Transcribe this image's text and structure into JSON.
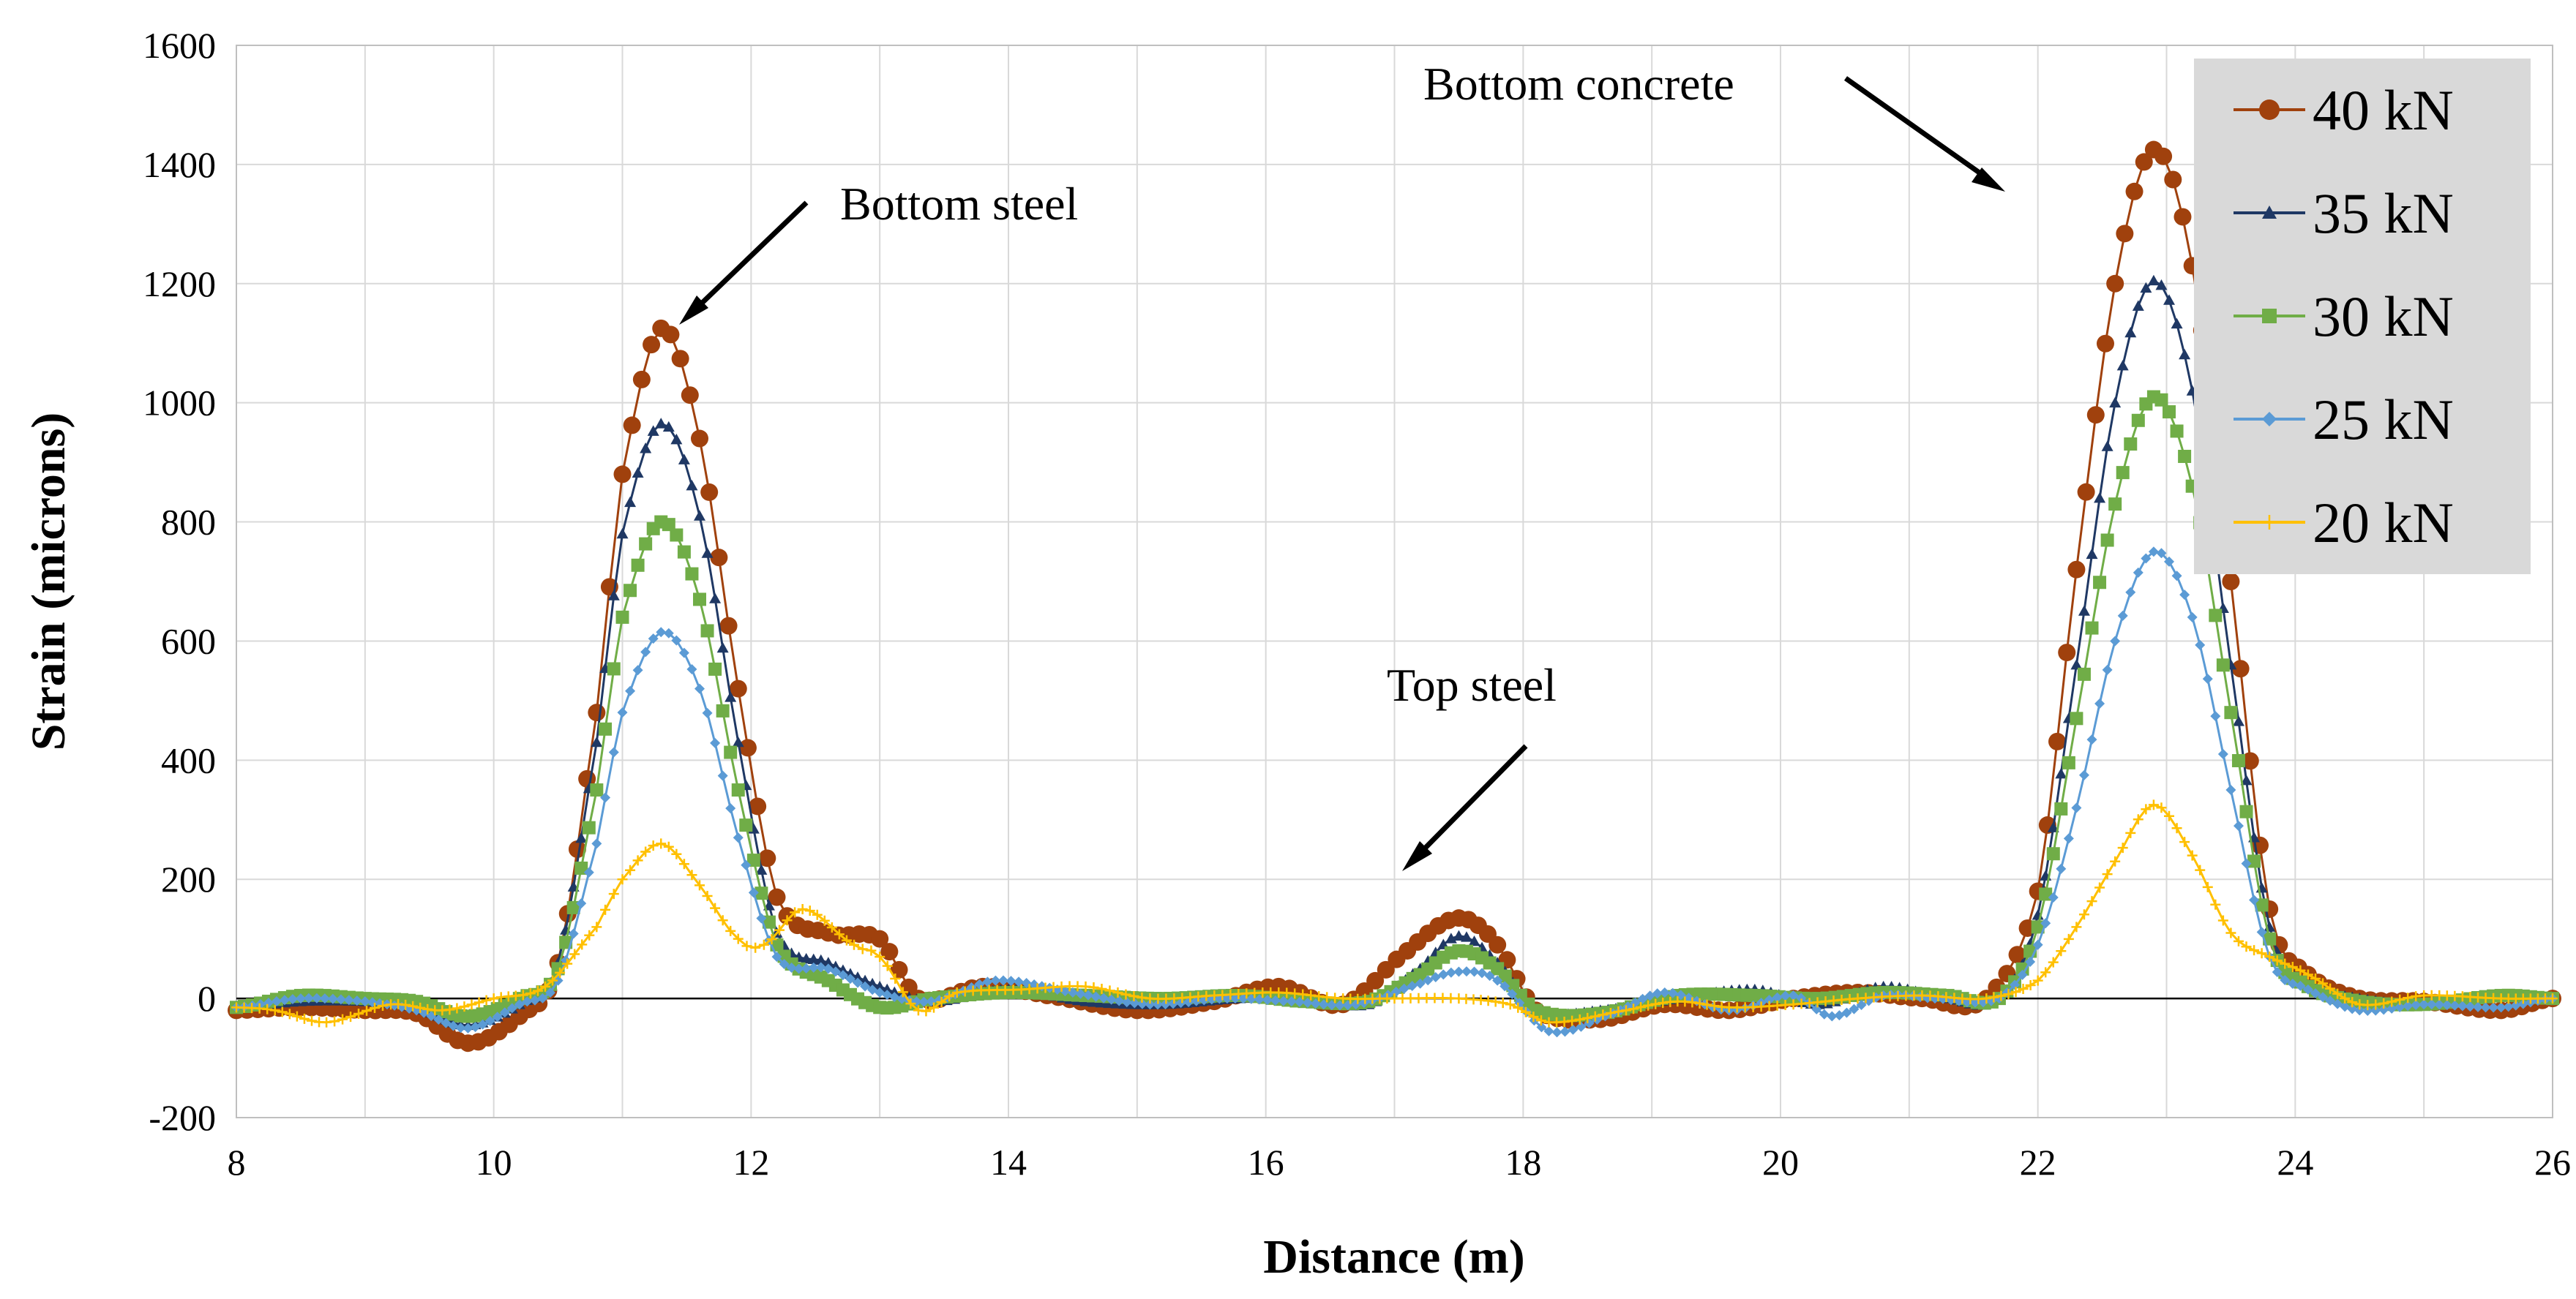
{
  "chart_data": {
    "type": "line",
    "title": "",
    "xlabel": "Distance (m)",
    "ylabel": "Strain (microns)",
    "xlim": [
      8,
      26
    ],
    "ylim": [
      -200,
      1600
    ],
    "xticks": [
      8,
      10,
      12,
      14,
      16,
      18,
      20,
      22,
      24,
      26
    ],
    "yticks": [
      -200,
      0,
      200,
      400,
      600,
      800,
      1000,
      1200,
      1400,
      1600
    ],
    "grid": true,
    "legend_position": "top-right",
    "annotations": [
      {
        "text": "Bottom steel",
        "x": 11.5,
        "y": 1120
      },
      {
        "text": "Top steel",
        "x": 17.6,
        "y": 215
      },
      {
        "text": "Bottom concrete",
        "x": 22.5,
        "y": 1360
      }
    ],
    "series": [
      {
        "name": "40 kN",
        "color": "#a0410d",
        "marker": "circle",
        "points": [
          [
            8,
            -20
          ],
          [
            8.5,
            -15
          ],
          [
            9,
            -20
          ],
          [
            9.4,
            -25
          ],
          [
            9.8,
            -75
          ],
          [
            10.2,
            -30
          ],
          [
            10.5,
            60
          ],
          [
            10.8,
            480
          ],
          [
            11.0,
            880
          ],
          [
            11.3,
            1125
          ],
          [
            11.6,
            940
          ],
          [
            11.9,
            520
          ],
          [
            12.2,
            170
          ],
          [
            12.6,
            110
          ],
          [
            13.0,
            100
          ],
          [
            13.3,
            0
          ],
          [
            13.8,
            20
          ],
          [
            14.3,
            5
          ],
          [
            15,
            -20
          ],
          [
            15.6,
            -5
          ],
          [
            16.1,
            20
          ],
          [
            16.6,
            -10
          ],
          [
            17.1,
            80
          ],
          [
            17.5,
            135
          ],
          [
            17.8,
            90
          ],
          [
            18.1,
            -20
          ],
          [
            18.6,
            -35
          ],
          [
            19.1,
            -10
          ],
          [
            19.6,
            -20
          ],
          [
            20.1,
            0
          ],
          [
            20.6,
            10
          ],
          [
            21.1,
            0
          ],
          [
            21.6,
            0
          ],
          [
            22.0,
            180
          ],
          [
            22.3,
            720
          ],
          [
            22.6,
            1200
          ],
          [
            22.9,
            1425
          ],
          [
            23.2,
            1230
          ],
          [
            23.5,
            700
          ],
          [
            23.8,
            150
          ],
          [
            24.1,
            40
          ],
          [
            24.5,
            0
          ],
          [
            25.0,
            -5
          ],
          [
            25.6,
            -20
          ],
          [
            26,
            0
          ]
        ]
      },
      {
        "name": "35 kN",
        "color": "#1f3864",
        "marker": "triangle",
        "points": [
          [
            8,
            -15
          ],
          [
            8.5,
            -5
          ],
          [
            9,
            -5
          ],
          [
            9.4,
            -15
          ],
          [
            9.8,
            -45
          ],
          [
            10.2,
            -10
          ],
          [
            10.5,
            60
          ],
          [
            10.8,
            430
          ],
          [
            11.0,
            780
          ],
          [
            11.3,
            965
          ],
          [
            11.6,
            810
          ],
          [
            11.9,
            430
          ],
          [
            12.2,
            110
          ],
          [
            12.6,
            60
          ],
          [
            13.0,
            20
          ],
          [
            13.4,
            -5
          ],
          [
            14.0,
            15
          ],
          [
            14.6,
            -5
          ],
          [
            15.2,
            -10
          ],
          [
            15.8,
            0
          ],
          [
            16.3,
            0
          ],
          [
            16.8,
            -10
          ],
          [
            17.2,
            50
          ],
          [
            17.5,
            105
          ],
          [
            17.8,
            60
          ],
          [
            18.1,
            -20
          ],
          [
            18.6,
            -20
          ],
          [
            19.2,
            0
          ],
          [
            19.8,
            15
          ],
          [
            20.3,
            -10
          ],
          [
            20.8,
            20
          ],
          [
            21.3,
            0
          ],
          [
            21.7,
            0
          ],
          [
            22.0,
            140
          ],
          [
            22.3,
            560
          ],
          [
            22.6,
            1000
          ],
          [
            22.9,
            1205
          ],
          [
            23.2,
            1020
          ],
          [
            23.5,
            560
          ],
          [
            23.8,
            120
          ],
          [
            24.1,
            25
          ],
          [
            24.5,
            0
          ],
          [
            25.0,
            -10
          ],
          [
            25.6,
            5
          ],
          [
            26,
            0
          ]
        ]
      },
      {
        "name": "30 kN",
        "color": "#70ad47",
        "marker": "square",
        "points": [
          [
            8,
            -15
          ],
          [
            8.5,
            5
          ],
          [
            9,
            0
          ],
          [
            9.4,
            -5
          ],
          [
            9.8,
            -30
          ],
          [
            10.2,
            0
          ],
          [
            10.5,
            50
          ],
          [
            10.8,
            350
          ],
          [
            11.0,
            640
          ],
          [
            11.3,
            800
          ],
          [
            11.6,
            670
          ],
          [
            11.9,
            350
          ],
          [
            12.2,
            90
          ],
          [
            12.6,
            30
          ],
          [
            13.0,
            -15
          ],
          [
            13.4,
            0
          ],
          [
            14.0,
            10
          ],
          [
            14.6,
            5
          ],
          [
            15.2,
            0
          ],
          [
            15.8,
            5
          ],
          [
            16.3,
            -5
          ],
          [
            16.8,
            -5
          ],
          [
            17.2,
            40
          ],
          [
            17.5,
            80
          ],
          [
            17.8,
            50
          ],
          [
            18.1,
            -20
          ],
          [
            18.6,
            -25
          ],
          [
            19.2,
            5
          ],
          [
            19.8,
            5
          ],
          [
            20.3,
            0
          ],
          [
            20.8,
            10
          ],
          [
            21.3,
            5
          ],
          [
            21.7,
            0
          ],
          [
            22.0,
            120
          ],
          [
            22.3,
            470
          ],
          [
            22.6,
            830
          ],
          [
            22.9,
            1010
          ],
          [
            23.2,
            860
          ],
          [
            23.5,
            480
          ],
          [
            23.8,
            100
          ],
          [
            24.1,
            20
          ],
          [
            24.5,
            -5
          ],
          [
            25.0,
            -10
          ],
          [
            25.6,
            5
          ],
          [
            26,
            0
          ]
        ]
      },
      {
        "name": "25 kN",
        "color": "#5b9bd5",
        "marker": "diamond",
        "points": [
          [
            8,
            -15
          ],
          [
            8.5,
            0
          ],
          [
            9,
            -5
          ],
          [
            9.4,
            -20
          ],
          [
            9.8,
            -50
          ],
          [
            10.2,
            -10
          ],
          [
            10.5,
            30
          ],
          [
            10.8,
            260
          ],
          [
            11.0,
            480
          ],
          [
            11.3,
            615
          ],
          [
            11.6,
            520
          ],
          [
            11.9,
            270
          ],
          [
            12.2,
            70
          ],
          [
            12.6,
            50
          ],
          [
            13.0,
            10
          ],
          [
            13.4,
            -5
          ],
          [
            13.9,
            30
          ],
          [
            14.5,
            10
          ],
          [
            15.1,
            -10
          ],
          [
            15.7,
            0
          ],
          [
            16.2,
            -5
          ],
          [
            16.7,
            -10
          ],
          [
            17.2,
            25
          ],
          [
            17.5,
            45
          ],
          [
            17.8,
            30
          ],
          [
            18.2,
            -55
          ],
          [
            18.7,
            -25
          ],
          [
            19.1,
            10
          ],
          [
            19.6,
            -20
          ],
          [
            20.1,
            5
          ],
          [
            20.4,
            -30
          ],
          [
            20.8,
            5
          ],
          [
            21.2,
            0
          ],
          [
            21.7,
            0
          ],
          [
            22.0,
            90
          ],
          [
            22.3,
            320
          ],
          [
            22.6,
            600
          ],
          [
            22.9,
            750
          ],
          [
            23.2,
            640
          ],
          [
            23.5,
            350
          ],
          [
            23.8,
            70
          ],
          [
            24.1,
            15
          ],
          [
            24.5,
            -20
          ],
          [
            25.0,
            -10
          ],
          [
            25.6,
            -15
          ],
          [
            26,
            0
          ]
        ]
      },
      {
        "name": "20 kN",
        "color": "#ffc000",
        "marker": "plus",
        "points": [
          [
            8,
            -15
          ],
          [
            8.3,
            -20
          ],
          [
            8.7,
            -40
          ],
          [
            9.2,
            -10
          ],
          [
            9.6,
            -20
          ],
          [
            10.0,
            0
          ],
          [
            10.4,
            20
          ],
          [
            10.8,
            120
          ],
          [
            11.0,
            200
          ],
          [
            11.3,
            260
          ],
          [
            11.6,
            190
          ],
          [
            11.9,
            100
          ],
          [
            12.1,
            90
          ],
          [
            12.4,
            150
          ],
          [
            12.8,
            90
          ],
          [
            13.0,
            70
          ],
          [
            13.3,
            -20
          ],
          [
            13.6,
            10
          ],
          [
            14.1,
            15
          ],
          [
            14.6,
            20
          ],
          [
            15.1,
            0
          ],
          [
            15.6,
            5
          ],
          [
            16.1,
            10
          ],
          [
            16.6,
            0
          ],
          [
            17.0,
            0
          ],
          [
            17.5,
            0
          ],
          [
            17.9,
            -10
          ],
          [
            18.2,
            -40
          ],
          [
            18.8,
            -20
          ],
          [
            19.2,
            -5
          ],
          [
            19.6,
            -15
          ],
          [
            20.1,
            -10
          ],
          [
            20.6,
            0
          ],
          [
            21.1,
            5
          ],
          [
            21.6,
            0
          ],
          [
            22.0,
            30
          ],
          [
            22.3,
            120
          ],
          [
            22.6,
            230
          ],
          [
            22.9,
            325
          ],
          [
            23.2,
            240
          ],
          [
            23.5,
            110
          ],
          [
            23.8,
            70
          ],
          [
            24.1,
            40
          ],
          [
            24.5,
            -10
          ],
          [
            25.0,
            5
          ],
          [
            25.6,
            0
          ],
          [
            26,
            0
          ]
        ]
      }
    ]
  }
}
